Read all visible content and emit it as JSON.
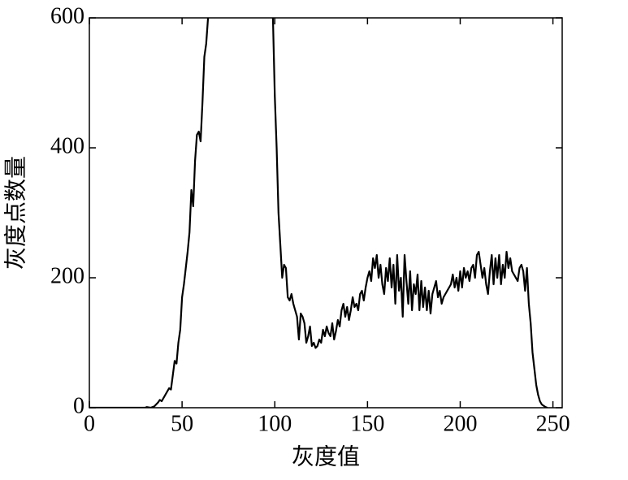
{
  "chart_data": {
    "type": "line",
    "xlabel": "灰度值",
    "ylabel": "灰度点数量",
    "color": "#000000",
    "xlim": [
      0,
      255
    ],
    "ylim": [
      0,
      600
    ],
    "xticks": [
      0,
      50,
      100,
      150,
      200,
      250
    ],
    "yticks": [
      0,
      200,
      400,
      600
    ],
    "x": [
      0,
      30,
      31,
      33,
      35,
      37,
      38,
      39,
      40,
      42,
      43,
      44,
      45,
      46,
      47,
      48,
      49,
      50,
      51,
      52,
      53,
      54,
      55,
      56,
      57,
      58,
      59,
      60,
      61,
      62,
      63,
      64,
      65,
      99,
      100,
      101,
      102,
      103,
      104,
      105,
      106,
      107,
      108,
      109,
      110,
      111,
      112,
      113,
      114,
      115,
      116,
      117,
      118,
      119,
      120,
      121,
      122,
      123,
      124,
      125,
      126,
      127,
      128,
      129,
      130,
      131,
      132,
      133,
      134,
      135,
      136,
      137,
      138,
      139,
      140,
      141,
      142,
      143,
      144,
      145,
      146,
      147,
      148,
      149,
      150,
      151,
      152,
      153,
      154,
      155,
      156,
      157,
      158,
      159,
      160,
      161,
      162,
      163,
      164,
      165,
      166,
      167,
      168,
      169,
      170,
      171,
      172,
      173,
      174,
      175,
      176,
      177,
      178,
      179,
      180,
      181,
      182,
      183,
      184,
      185,
      186,
      187,
      188,
      189,
      190,
      191,
      192,
      193,
      194,
      195,
      196,
      197,
      198,
      199,
      200,
      201,
      202,
      203,
      204,
      205,
      206,
      207,
      208,
      209,
      210,
      211,
      212,
      213,
      214,
      215,
      216,
      217,
      218,
      219,
      220,
      221,
      222,
      223,
      224,
      225,
      226,
      227,
      228,
      229,
      230,
      231,
      232,
      233,
      234,
      235,
      236,
      237,
      238,
      239,
      240,
      241,
      242,
      243,
      244,
      245,
      246,
      247
    ],
    "values": [
      0,
      0,
      1,
      0,
      2,
      8,
      12,
      10,
      15,
      25,
      30,
      28,
      50,
      72,
      68,
      100,
      120,
      170,
      190,
      215,
      240,
      270,
      335,
      310,
      380,
      420,
      425,
      410,
      470,
      540,
      560,
      600,
      null,
      600,
      480,
      400,
      300,
      250,
      200,
      220,
      215,
      170,
      165,
      175,
      160,
      150,
      140,
      105,
      145,
      140,
      130,
      100,
      110,
      125,
      95,
      100,
      92,
      95,
      105,
      100,
      120,
      110,
      125,
      115,
      110,
      130,
      105,
      118,
      135,
      125,
      150,
      160,
      140,
      155,
      135,
      150,
      170,
      155,
      160,
      150,
      175,
      180,
      165,
      185,
      200,
      210,
      195,
      230,
      215,
      235,
      200,
      220,
      190,
      175,
      215,
      195,
      230,
      185,
      220,
      160,
      235,
      180,
      200,
      140,
      235,
      195,
      160,
      210,
      150,
      190,
      175,
      205,
      150,
      195,
      155,
      185,
      150,
      180,
      145,
      175,
      185,
      195,
      170,
      180,
      160,
      170,
      175,
      180,
      185,
      190,
      205,
      185,
      200,
      180,
      210,
      185,
      215,
      200,
      210,
      195,
      215,
      220,
      200,
      235,
      240,
      220,
      200,
      215,
      190,
      175,
      210,
      235,
      190,
      230,
      200,
      235,
      190,
      220,
      200,
      240,
      215,
      230,
      210,
      205,
      200,
      195,
      215,
      220,
      210,
      180,
      215,
      160,
      130,
      85,
      60,
      35,
      20,
      10,
      5,
      3,
      1,
      0
    ]
  }
}
